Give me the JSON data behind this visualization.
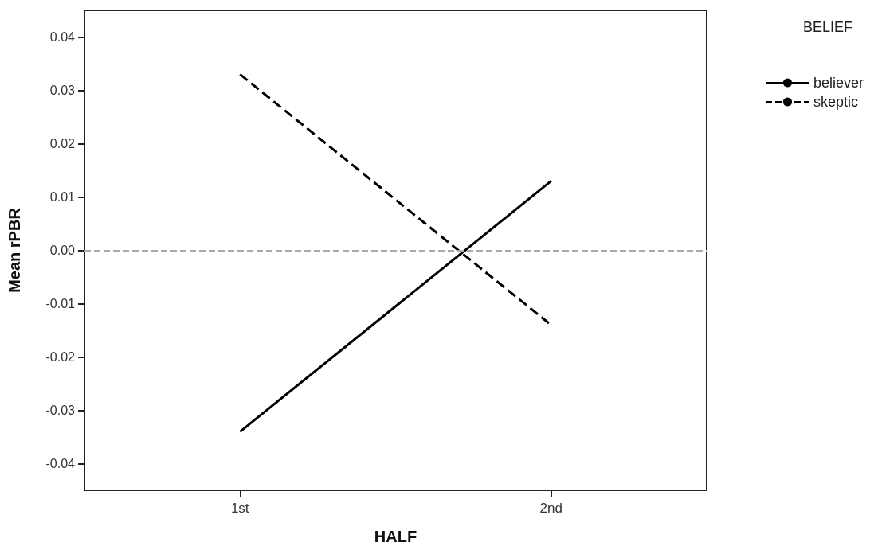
{
  "chart_data": {
    "type": "line",
    "xlabel": "HALF",
    "ylabel": "Mean rPBR",
    "legend_title": "BELIEF",
    "categories": [
      "1st",
      "2nd"
    ],
    "series": [
      {
        "name": "believer",
        "color": "#000000",
        "values": [
          -0.034,
          0.013
        ],
        "line_style": "solid"
      },
      {
        "name": "skeptic",
        "color": "#000000",
        "values": [
          0.033,
          -0.014
        ],
        "line_style": "dashed"
      }
    ],
    "ylim": [
      -0.045,
      0.045
    ],
    "yticks": [
      -0.04,
      -0.03,
      -0.02,
      -0.01,
      {
        "value": 0,
        "label": "0.00"
      },
      0.01,
      0.02,
      0.03,
      0.04
    ],
    "ref_lines": [
      {
        "axis": "y",
        "value": 0,
        "label": null,
        "color": "#aaaaaa",
        "line_style": "dashed"
      }
    ],
    "grid": false,
    "legend": "top right",
    "marker": "none"
  }
}
